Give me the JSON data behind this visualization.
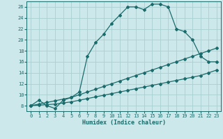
{
  "xlabel": "Humidex (Indice chaleur)",
  "xlim": [
    -0.5,
    23.5
  ],
  "ylim": [
    7,
    27
  ],
  "yticks": [
    8,
    10,
    12,
    14,
    16,
    18,
    20,
    22,
    24,
    26
  ],
  "xticks": [
    0,
    1,
    2,
    3,
    4,
    5,
    6,
    7,
    8,
    9,
    10,
    11,
    12,
    13,
    14,
    15,
    16,
    17,
    18,
    19,
    20,
    21,
    22,
    23
  ],
  "background_color": "#cce8ea",
  "grid_color": "#aacfd2",
  "line_color": "#1a6b6b",
  "line1_x": [
    0,
    1,
    2,
    3,
    4,
    5,
    6,
    7,
    8,
    9,
    10,
    11,
    12,
    13,
    14,
    15,
    16,
    17,
    18,
    19,
    20,
    21,
    22,
    23
  ],
  "line1_y": [
    8,
    9,
    8,
    7.5,
    9,
    9.5,
    10.5,
    17,
    19.5,
    21,
    23,
    24.5,
    26,
    26,
    25.5,
    26.5,
    26.5,
    26,
    22,
    21.5,
    20,
    17,
    16,
    16
  ],
  "line2_x": [
    0,
    1,
    2,
    3,
    4,
    5,
    6,
    7,
    8,
    9,
    10,
    11,
    12,
    13,
    14,
    15,
    16,
    17,
    18,
    19,
    20,
    21,
    22,
    23
  ],
  "line2_y": [
    8,
    8.3,
    8.6,
    8.9,
    9.2,
    9.5,
    10,
    10.5,
    11,
    11.5,
    12,
    12.5,
    13,
    13.5,
    14,
    14.5,
    15,
    15.5,
    16,
    16.5,
    17,
    17.5,
    18,
    18.5
  ],
  "line3_x": [
    0,
    1,
    2,
    3,
    4,
    5,
    6,
    7,
    8,
    9,
    10,
    11,
    12,
    13,
    14,
    15,
    16,
    17,
    18,
    19,
    20,
    21,
    22,
    23
  ],
  "line3_y": [
    8,
    8.1,
    8.2,
    8.3,
    8.5,
    8.7,
    9,
    9.3,
    9.6,
    9.9,
    10.2,
    10.5,
    10.8,
    11.1,
    11.4,
    11.7,
    12,
    12.3,
    12.6,
    12.9,
    13.2,
    13.5,
    14,
    14.5
  ]
}
